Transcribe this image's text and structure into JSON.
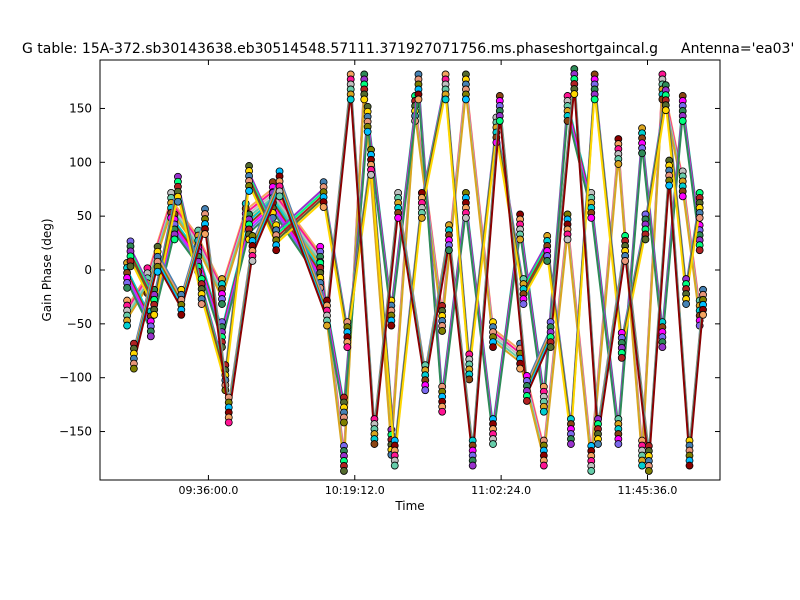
{
  "chart_data": {
    "type": "line",
    "title": "G table: 15A-372.sb30143638.eb30514548.57111.371927071756.ms.phaseshortgaincal.g",
    "title_right": "Antenna='ea03'",
    "xlabel": "Time",
    "ylabel": "Gain Phase (deg)",
    "xlim": [
      "09:04:00",
      "12:07:00"
    ],
    "ylim": [
      -195,
      195
    ],
    "x_ticks": [
      "09:36:00.0",
      "10:19:12.0",
      "11:02:24.0",
      "11:45:36.0"
    ],
    "y_ticks": [
      -150,
      -100,
      -50,
      0,
      50,
      100,
      150
    ],
    "grid": false,
    "legend": "none",
    "colors": [
      "#f4a460",
      "#ff1493",
      "#c0c0c0",
      "#66cdaa",
      "#daa520",
      "#00ced1",
      "#8b4513",
      "#ff00ff",
      "#7b68ee",
      "#2e8b57",
      "#9932cc",
      "#00ff7f",
      "#b22222",
      "#556b2f",
      "#ffd700",
      "#4682b4",
      "#e9967a",
      "#808000",
      "#00bfff",
      "#8b0000"
    ],
    "series": [
      {
        "x": [
          "09:12",
          "09:18",
          "09:25",
          "09:33",
          "09:40",
          "09:47",
          "09:55",
          "10:09",
          "10:16",
          "10:22",
          "10:30",
          "10:37",
          "10:45",
          "10:52",
          "11:00",
          "11:08",
          "11:15",
          "11:22",
          "11:29",
          "11:37",
          "11:44",
          "11:50",
          "11:56",
          "12:01"
        ],
        "values": [
          -40,
          -10,
          60,
          25,
          -20,
          50,
          70,
          10,
          -175,
          170,
          -160,
          150,
          -45,
          170,
          -60,
          -80,
          -170,
          40,
          -175,
          110,
          -170,
          170,
          80,
          -40
        ]
      },
      {
        "x": [
          "09:12",
          "09:19",
          "09:26",
          "09:33",
          "09:40",
          "09:48",
          "09:55",
          "10:09",
          "10:16",
          "10:23",
          "10:30",
          "10:38",
          "10:45",
          "10:52",
          "11:00",
          "11:08",
          "11:15",
          "11:22",
          "11:29",
          "11:37",
          "11:44",
          "11:50",
          "11:56",
          "12:01"
        ],
        "values": [
          -5,
          -50,
          40,
          10,
          -60,
          40,
          60,
          -5,
          -130,
          140,
          -40,
          170,
          -120,
          60,
          -150,
          40,
          -120,
          150,
          60,
          -150,
          120,
          -60,
          150,
          30
        ]
      },
      {
        "x": [
          "09:13",
          "09:20",
          "09:27",
          "09:34",
          "09:41",
          "09:48",
          "09:56",
          "10:10",
          "10:17",
          "10:24",
          "10:31",
          "10:39",
          "10:46",
          "10:53",
          "11:01",
          "11:09",
          "11:16",
          "11:23",
          "11:30",
          "11:38",
          "11:45",
          "11:51",
          "11:57",
          "12:01"
        ],
        "values": [
          15,
          -30,
          75,
          -20,
          -100,
          85,
          30,
          70,
          -60,
          100,
          -170,
          60,
          170,
          -90,
          130,
          -20,
          20,
          -150,
          170,
          -70,
          40,
          160,
          -20,
          60
        ]
      },
      {
        "x": [
          "09:14",
          "09:21",
          "09:28",
          "09:35",
          "09:42",
          "09:49",
          "09:57",
          "10:11",
          "10:18",
          "10:25",
          "10:32",
          "10:40",
          "10:47",
          "10:54",
          "11:02",
          "11:10",
          "11:17",
          "11:24",
          "11:31",
          "11:39",
          "11:46",
          "11:52",
          "11:58",
          "12:02"
        ],
        "values": [
          -80,
          10,
          -30,
          45,
          -130,
          20,
          80,
          -40,
          170,
          -150,
          60,
          -100,
          30,
          -170,
          150,
          -110,
          -60,
          175,
          -150,
          20,
          -175,
          90,
          -170,
          -30
        ]
      }
    ]
  }
}
